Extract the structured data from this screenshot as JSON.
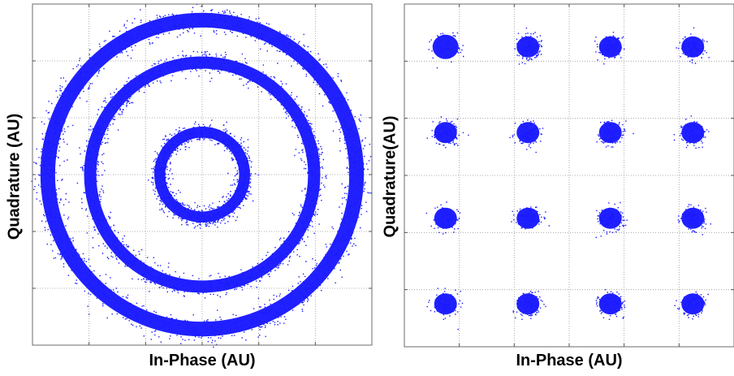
{
  "chart_data": [
    {
      "type": "scatter",
      "title": "",
      "xlabel": "In-Phase (AU)",
      "ylabel": "Quadrature (AU)",
      "xlim": [
        -1,
        1
      ],
      "ylim": [
        -1,
        1
      ],
      "grid": true,
      "marker_color": "#1a1aff",
      "rings": [
        {
          "radius": 0.25,
          "thickness": 0.09
        },
        {
          "radius": 0.66,
          "thickness": 0.1
        },
        {
          "radius": 0.91,
          "thickness": 0.12
        }
      ]
    },
    {
      "type": "scatter",
      "title": "",
      "xlabel": "In-Phase (AU)",
      "ylabel": "Quadrature(AU)",
      "xlim": [
        -4,
        4
      ],
      "ylim": [
        -4,
        4
      ],
      "grid": true,
      "marker_color": "#1a1aff",
      "clusters": [
        {
          "x": -3,
          "y": 3
        },
        {
          "x": -1,
          "y": 3
        },
        {
          "x": 1,
          "y": 3
        },
        {
          "x": 3,
          "y": 3
        },
        {
          "x": -3,
          "y": 1
        },
        {
          "x": -1,
          "y": 1
        },
        {
          "x": 1,
          "y": 1
        },
        {
          "x": 3,
          "y": 1
        },
        {
          "x": -3,
          "y": -1
        },
        {
          "x": -1,
          "y": -1
        },
        {
          "x": 1,
          "y": -1
        },
        {
          "x": 3,
          "y": -1
        },
        {
          "x": -3,
          "y": -3
        },
        {
          "x": -1,
          "y": -3
        },
        {
          "x": 1,
          "y": -3
        },
        {
          "x": 3,
          "y": -3
        }
      ]
    }
  ]
}
